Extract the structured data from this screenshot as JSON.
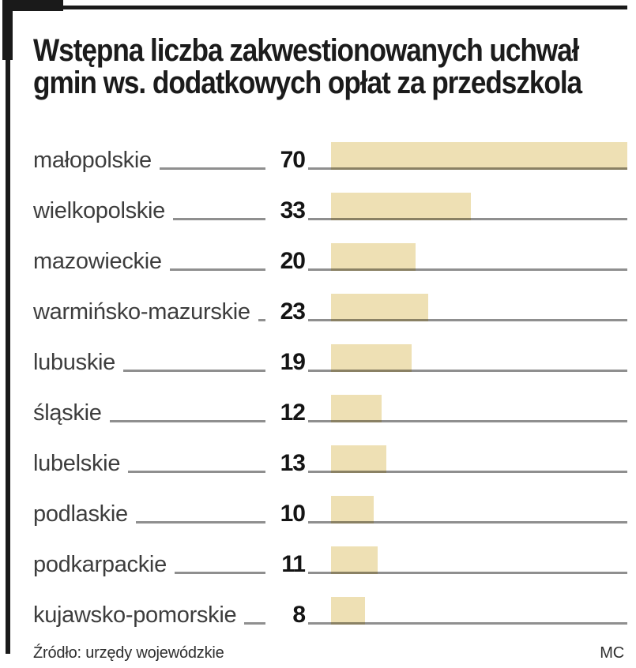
{
  "title": {
    "text": "Wstępna liczba zakwestionowanych uchwał gmin ws. dodatkowych opłat za przedszkola",
    "lines": [
      "Wstępna liczba zakwestionowanych uchwał",
      "gmin ws. dodatkowych opłat za przedszkola"
    ]
  },
  "chart_data": {
    "type": "bar",
    "orientation": "horizontal",
    "title": "Wstępna liczba zakwestionowanych uchwał gmin ws. dodatkowych opłat za przedszkola",
    "categories": [
      "małopolskie",
      "wielkopolskie",
      "mazowieckie",
      "warmińsko-mazurskie",
      "lubuskie",
      "śląskie",
      "lubelskie",
      "podlaskie",
      "podkarpackie",
      "kujawsko-pomorskie"
    ],
    "values": [
      70,
      33,
      20,
      23,
      19,
      12,
      13,
      10,
      11,
      8
    ],
    "xlim": [
      0,
      70
    ],
    "grid": false,
    "legend": false,
    "value_labels": true
  },
  "footer": {
    "source": "Źródło: urzędy wojewódzkie",
    "credit": "MC"
  },
  "colors": {
    "background": "#ffffff",
    "frame": "#1a1a1a",
    "title_text": "#1b1b1b",
    "label_text": "#3d3d3d",
    "value_text": "#141414",
    "leader_line": "#8f8f8f",
    "bar": "#eee0b4",
    "bar_underline": "#8a8164"
  }
}
